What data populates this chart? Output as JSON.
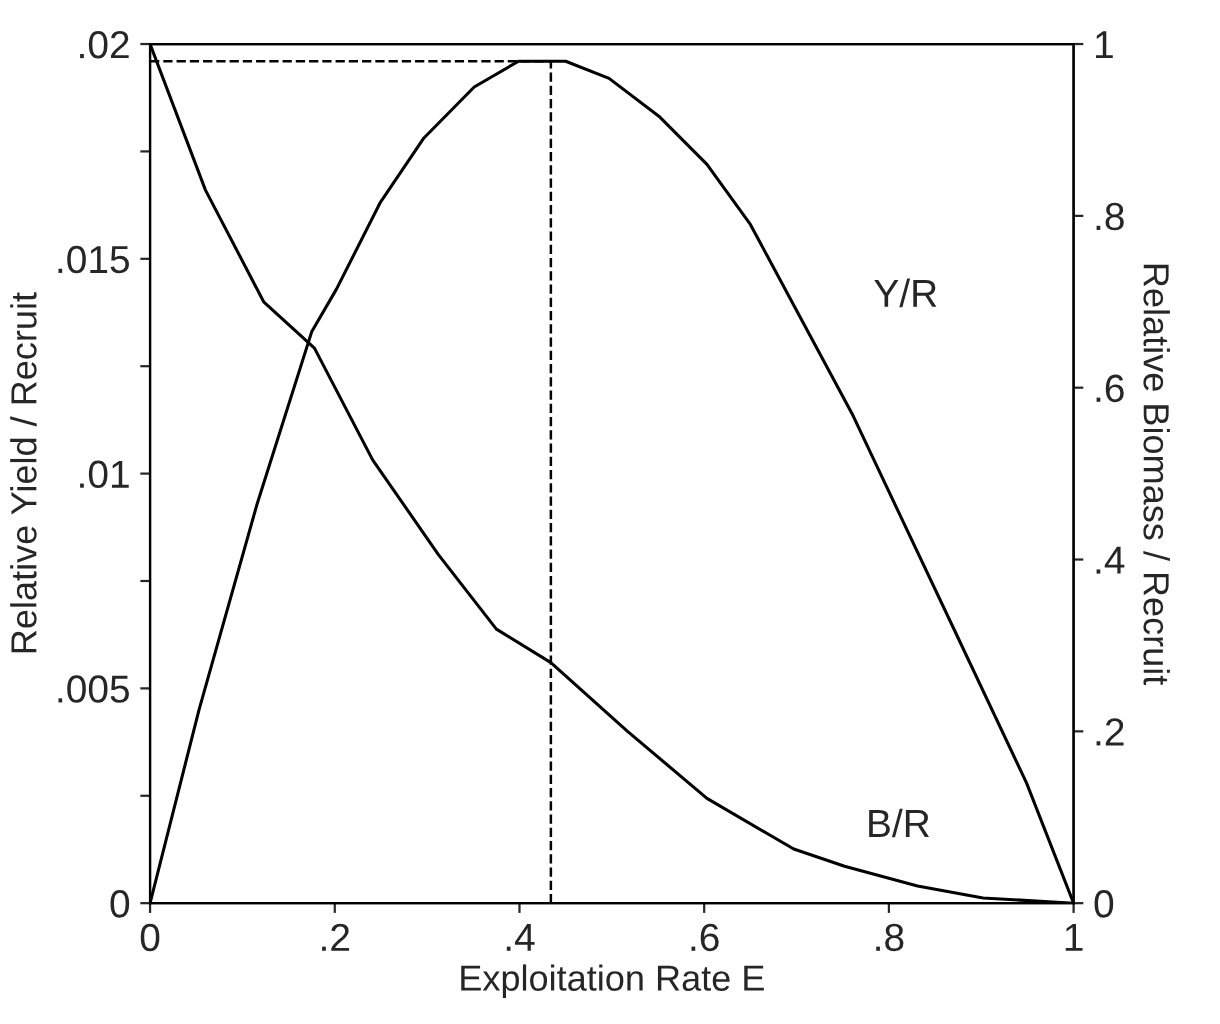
{
  "chart_data": {
    "type": "line",
    "xlabel": "Exploitation Rate E",
    "ylabel": "Relative Yield / Recruit",
    "y2label": "Relative Biomass / Recruit",
    "series": [
      {
        "name": "Y/R",
        "color": "#000000",
        "x": [
          0,
          0.053,
          0.116,
          0.175,
          0.202,
          0.249,
          0.296,
          0.351,
          0.399,
          0.45,
          0.497,
          0.552,
          0.603,
          0.65,
          0.705,
          0.76,
          0.815,
          0.87,
          0.949,
          1
        ],
        "values": [
          0,
          0.0045,
          0.0093,
          0.0133,
          0.0143,
          0.0163,
          0.0178,
          0.019,
          0.0196,
          0.0196,
          0.0192,
          0.0183,
          0.0172,
          0.0158,
          0.0136,
          0.0114,
          0.0089,
          0.0064,
          0.0028,
          0
        ]
      },
      {
        "name": "B/R",
        "color": "#000000",
        "axis": "y2",
        "x": [
          0,
          0.06,
          0.123,
          0.178,
          0.241,
          0.312,
          0.375,
          0.434,
          0.517,
          0.603,
          0.697,
          0.752,
          0.831,
          0.902,
          1
        ],
        "values": [
          1,
          0.83,
          0.7,
          0.646,
          0.516,
          0.406,
          0.319,
          0.28,
          0.2,
          0.122,
          0.063,
          0.043,
          0.02,
          0.006,
          0
        ]
      }
    ],
    "ref_lines": [
      {
        "axis": "y",
        "value": 0.0196,
        "line_style": "dashed",
        "color": "#000000"
      },
      {
        "axis": "x",
        "value": 0.434,
        "line_style": "dashed",
        "color": "#000000"
      }
    ],
    "xlim": [
      0,
      1
    ],
    "xticks": [
      {
        "value": 0,
        "label": "0"
      },
      {
        "value": 0.2,
        "label": ".2"
      },
      {
        "value": 0.4,
        "label": ".4"
      },
      {
        "value": 0.6,
        "label": ".6"
      },
      {
        "value": 0.8,
        "label": ".8"
      },
      {
        "value": 1,
        "label": "1"
      }
    ],
    "ylim": [
      0,
      0.02
    ],
    "yticks": [
      {
        "value": 0,
        "label": "0"
      },
      {
        "value": 0.0025,
        "label": null
      },
      {
        "value": 0.005,
        "label": ".005"
      },
      {
        "value": 0.0075,
        "label": null
      },
      {
        "value": 0.01,
        "label": ".01"
      },
      {
        "value": 0.0125,
        "label": null
      },
      {
        "value": 0.015,
        "label": ".015"
      },
      {
        "value": 0.0175,
        "label": null
      },
      {
        "value": 0.02,
        "label": ".02"
      }
    ],
    "y2lim": [
      0,
      1
    ],
    "y2ticks": [
      {
        "value": 0,
        "label": "0"
      },
      {
        "value": 0.2,
        "label": ".2"
      },
      {
        "value": 0.4,
        "label": ".4"
      },
      {
        "value": 0.6,
        "label": ".6"
      },
      {
        "value": 0.8,
        "label": ".8"
      },
      {
        "value": 1,
        "label": "1"
      }
    ],
    "grid": false,
    "legend": false,
    "marker": "none",
    "line_style": "solid"
  }
}
